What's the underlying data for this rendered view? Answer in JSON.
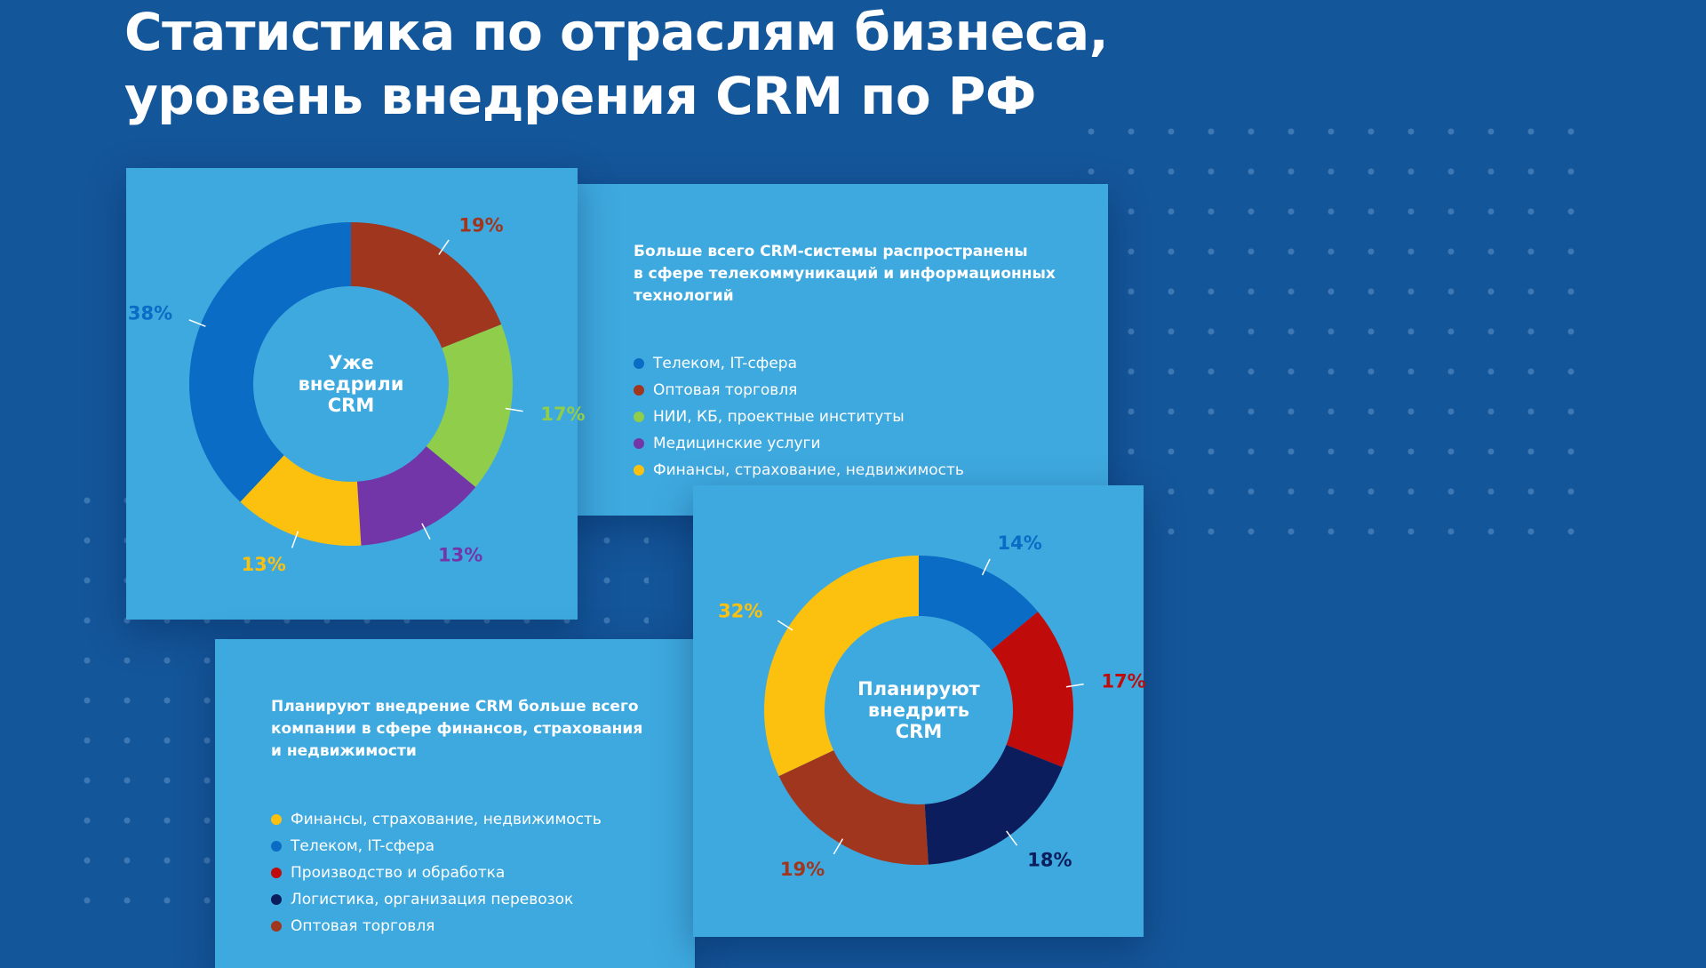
{
  "title": {
    "line1": "Статистика по отраслям бизнеса,",
    "line2": "уровень внедрения CRM по РФ"
  },
  "card_top": {
    "heading_lines": [
      "Больше всего CRM-системы распространены",
      "в сфере телекоммуникаций и информационных",
      "технологий"
    ]
  },
  "card_bottom": {
    "heading_lines": [
      "Планируют внедрение CRM больше всего",
      "компании в сфере финансов, страхования",
      "и недвижимости"
    ]
  },
  "chart_data": [
    {
      "type": "pie",
      "center_label": [
        "Уже",
        "внедрили",
        "CRM"
      ],
      "categories": [
        "Телеком, IT-сфера",
        "Оптовая торговля",
        "НИИ, КБ, проектные институты",
        "Медицинские услуги",
        "Финансы, страхование, недвижимость"
      ],
      "values": [
        38,
        19,
        17,
        13,
        13
      ],
      "labels": [
        "38%",
        "19%",
        "17%",
        "13%",
        "13%"
      ],
      "colors": [
        "#0a6cc4",
        "#a0361e",
        "#8fcd4b",
        "#7236a8",
        "#fcc10f"
      ],
      "label_colors": [
        "#0a6cc4",
        "#a0361e",
        "#8fcd4b",
        "#7236a8",
        "#fcc10f"
      ],
      "legend_order": [
        0,
        1,
        2,
        3,
        4
      ],
      "slice_order": [
        1,
        2,
        3,
        4,
        0
      ],
      "legend_placement": "right"
    },
    {
      "type": "pie",
      "center_label": [
        "Планируют",
        "внедрить",
        "CRM"
      ],
      "categories": [
        "Финансы, страхование, недвижимость",
        "Телеком, IT-сфера",
        "Производство и обработка",
        "Логистика, организация перевозок",
        "Оптовая торговля"
      ],
      "values": [
        32,
        14,
        17,
        18,
        19
      ],
      "labels": [
        "32%",
        "14%",
        "17%",
        "18%",
        "19%"
      ],
      "colors": [
        "#fcc10f",
        "#0a6cc4",
        "#c00b0b",
        "#0b1d5c",
        "#a0361e"
      ],
      "label_colors": [
        "#fcc10f",
        "#0a6cc4",
        "#c00b0b",
        "#0b1d5c",
        "#a0361e"
      ],
      "legend_order": [
        0,
        1,
        2,
        3,
        4
      ],
      "slice_order": [
        1,
        2,
        3,
        4,
        0
      ],
      "legend_placement": "left"
    }
  ]
}
